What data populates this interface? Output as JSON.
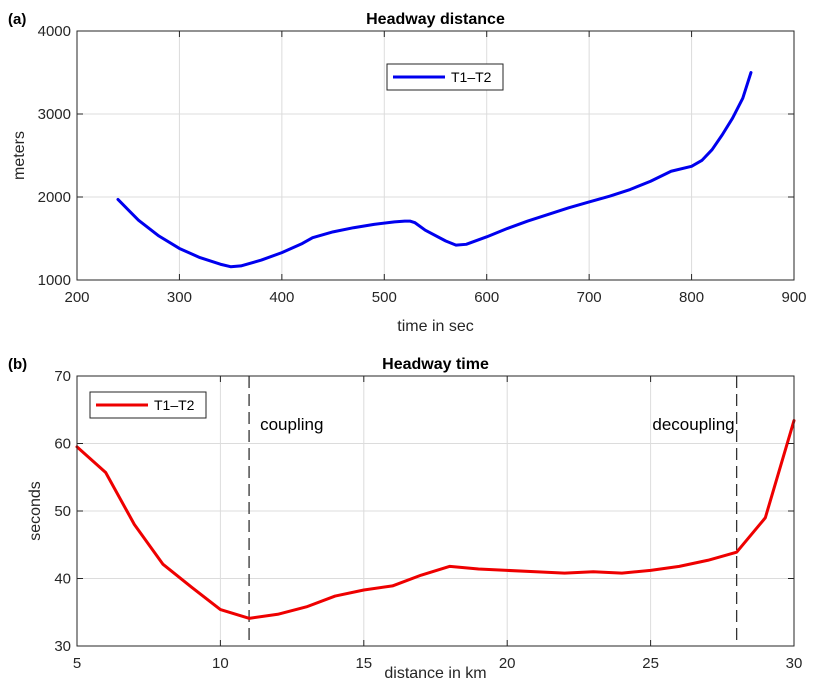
{
  "chart_data": [
    {
      "type": "line",
      "panel_label": "(a)",
      "title": "Headway distance",
      "xlabel": "time in sec",
      "ylabel": "meters",
      "xlim": [
        200,
        900
      ],
      "ylim": [
        1000,
        4000
      ],
      "xticks": [
        200,
        300,
        400,
        500,
        600,
        700,
        800,
        900
      ],
      "yticks": [
        1000,
        2000,
        3000,
        4000
      ],
      "grid": true,
      "legend": "top-center",
      "series": [
        {
          "name": "T1–T2",
          "color": "#0000ee",
          "x": [
            240,
            260,
            280,
            300,
            320,
            340,
            350,
            360,
            380,
            400,
            420,
            430,
            450,
            470,
            490,
            510,
            520,
            525,
            530,
            540,
            560,
            570,
            580,
            600,
            620,
            640,
            660,
            680,
            700,
            720,
            740,
            760,
            770,
            780,
            800,
            810,
            820,
            830,
            840,
            850,
            858
          ],
          "y": [
            1970,
            1720,
            1530,
            1380,
            1270,
            1190,
            1160,
            1170,
            1240,
            1330,
            1440,
            1510,
            1580,
            1630,
            1670,
            1700,
            1710,
            1710,
            1690,
            1600,
            1470,
            1420,
            1430,
            1520,
            1620,
            1710,
            1790,
            1870,
            1940,
            2010,
            2090,
            2190,
            2250,
            2310,
            2370,
            2440,
            2570,
            2750,
            2950,
            3190,
            3500
          ]
        }
      ]
    },
    {
      "type": "line",
      "panel_label": "(b)",
      "title": "Headway time",
      "xlabel": "distance in km",
      "ylabel": "seconds",
      "xlim": [
        5,
        30
      ],
      "ylim": [
        30,
        70
      ],
      "xticks": [
        5,
        10,
        15,
        20,
        25,
        30
      ],
      "yticks": [
        30,
        40,
        50,
        60,
        70
      ],
      "grid": true,
      "legend": "top-left",
      "vlines": [
        {
          "x": 11,
          "label": "coupling",
          "label_side": "right"
        },
        {
          "x": 28,
          "label": "decoupling",
          "label_side": "left"
        }
      ],
      "series": [
        {
          "name": "T1–T2",
          "color": "#ee0000",
          "x": [
            5,
            6,
            7,
            8,
            9,
            10,
            11,
            12,
            13,
            14,
            15,
            16,
            17,
            18,
            19,
            20,
            21,
            22,
            23,
            24,
            25,
            26,
            27,
            28,
            29,
            30
          ],
          "y": [
            59.5,
            55.7,
            48.0,
            42.1,
            38.7,
            35.4,
            34.1,
            34.7,
            35.8,
            37.4,
            38.3,
            38.9,
            40.5,
            41.8,
            41.4,
            41.2,
            41.0,
            40.8,
            41.0,
            40.8,
            41.2,
            41.8,
            42.7,
            43.9,
            49.0,
            63.4
          ]
        }
      ]
    }
  ]
}
